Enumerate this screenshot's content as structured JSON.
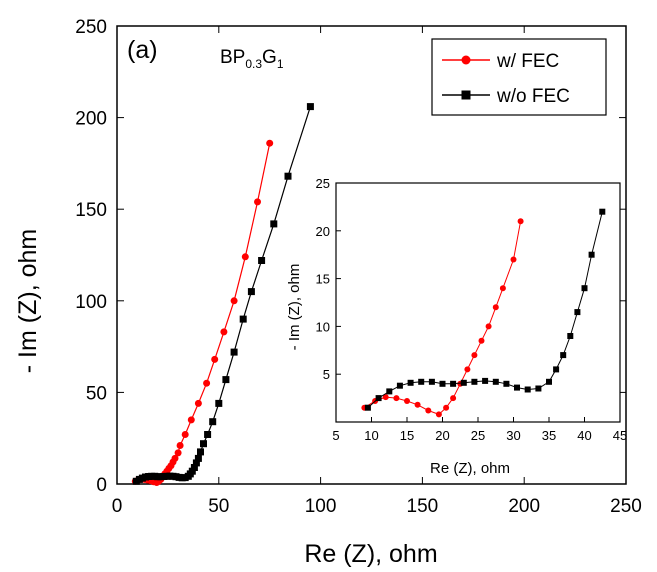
{
  "chart_data": {
    "type": "scatter",
    "panel_label": "(a)",
    "sample": {
      "base": "BP",
      "sub1": "0.3",
      "mid": "G",
      "sub2": "1"
    },
    "xlabel": "Re (Z), ohm",
    "ylabel": "- Im (Z), ohm",
    "xlim": [
      0,
      250
    ],
    "ylim": [
      0,
      250
    ],
    "xticks": [
      0,
      50,
      100,
      150,
      200,
      250
    ],
    "yticks": [
      0,
      50,
      100,
      150,
      200,
      250
    ],
    "legend": {
      "placement": "top-right"
    },
    "series": [
      {
        "name": "w/ FEC",
        "color": "#ff0000",
        "marker": "circle",
        "x": [
          9.0,
          10.5,
          12.0,
          13.5,
          15.0,
          16.5,
          18.0,
          19.5,
          20.5,
          21.5,
          22.5,
          23.5,
          24.5,
          25.5,
          26.5,
          27.5,
          28.5,
          30.0,
          31.0,
          33.5,
          36.5,
          40.0,
          44.0,
          48.0,
          52.5,
          57.5,
          63.0,
          69.0,
          75.0
        ],
        "y": [
          1.5,
          2.2,
          2.6,
          2.5,
          2.2,
          1.8,
          1.2,
          0.8,
          1.5,
          2.5,
          4.0,
          5.5,
          7.0,
          8.5,
          10.0,
          12.0,
          14.0,
          17.0,
          21.0,
          27.0,
          35.0,
          44.0,
          55.0,
          68.0,
          83.0,
          100.0,
          124.0,
          154.0,
          186.0
        ]
      },
      {
        "name": "w/o FEC",
        "color": "#000000",
        "marker": "square",
        "x": [
          9.5,
          11.0,
          12.5,
          14.0,
          15.5,
          17.0,
          18.5,
          20.0,
          21.5,
          23.0,
          24.5,
          26.0,
          27.5,
          29.0,
          30.5,
          32.0,
          33.5,
          35.0,
          36.0,
          37.0,
          38.0,
          39.0,
          40.0,
          41.0,
          42.5,
          44.5,
          47.0,
          50.0,
          53.5,
          57.5,
          62.0,
          66.0,
          71.0,
          77.0,
          84.0,
          95.0
        ],
        "y": [
          1.5,
          2.5,
          3.2,
          3.8,
          4.1,
          4.2,
          4.2,
          4.0,
          4.0,
          4.1,
          4.2,
          4.3,
          4.2,
          4.0,
          3.6,
          3.4,
          3.5,
          4.2,
          5.5,
          7.0,
          9.0,
          11.5,
          14.0,
          17.5,
          22.0,
          27.0,
          34.0,
          44.0,
          57.0,
          72.0,
          90.0,
          105.0,
          122.0,
          142.0,
          168.0,
          206.0
        ]
      }
    ],
    "inset": {
      "xlabel": "Re (Z), ohm",
      "ylabel": "- Im (Z), ohm",
      "xlim": [
        5,
        45
      ],
      "ylim": [
        0,
        25
      ],
      "xticks": [
        5,
        10,
        15,
        20,
        25,
        30,
        35,
        40,
        45
      ],
      "yticks": [
        5,
        10,
        15,
        20,
        25
      ]
    }
  }
}
